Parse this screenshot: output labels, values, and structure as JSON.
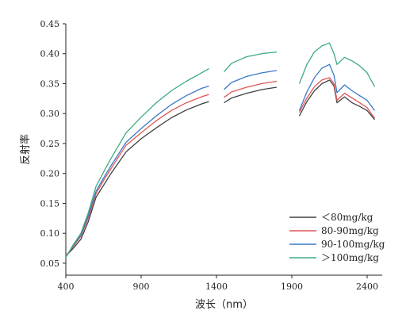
{
  "chart_data": {
    "type": "line",
    "title": "",
    "xlabel": "波长（nm）",
    "ylabel": "反射率",
    "xlim": [
      400,
      2500
    ],
    "ylim": [
      0.03,
      0.45
    ],
    "x_ticks": [
      400,
      900,
      1400,
      1900,
      2400
    ],
    "x_tick_labels": [
      "400",
      "900",
      "1400",
      "1900",
      "2400"
    ],
    "y_ticks": [
      0.05,
      0.1,
      0.15,
      0.2,
      0.25,
      0.3,
      0.35,
      0.4,
      0.45
    ],
    "y_tick_labels": [
      "0.05",
      "0.10",
      "0.15",
      "0.20",
      "0.25",
      "0.30",
      "0.35",
      "0.40",
      "0.45"
    ],
    "grid": false,
    "legend_position": "bottom-right",
    "x": [
      400,
      450,
      500,
      550,
      600,
      650,
      700,
      800,
      900,
      1000,
      1100,
      1200,
      1300,
      1350,
      null,
      1450,
      1500,
      1600,
      1700,
      1800,
      null,
      1950,
      2000,
      2050,
      2100,
      2150,
      2180,
      2200,
      2250,
      2300,
      2350,
      2400,
      2450
    ],
    "series": [
      {
        "name": "＜80mg/kg",
        "color": "#404040",
        "values": [
          0.062,
          0.075,
          0.09,
          0.12,
          0.16,
          0.18,
          0.2,
          0.236,
          0.258,
          0.276,
          0.293,
          0.306,
          0.316,
          0.32,
          null,
          0.318,
          0.326,
          0.334,
          0.34,
          0.344,
          null,
          0.296,
          0.32,
          0.338,
          0.35,
          0.356,
          0.346,
          0.318,
          0.328,
          0.318,
          0.312,
          0.305,
          0.29
        ]
      },
      {
        "name": "80-90mg/kg",
        "color": "#e05555",
        "values": [
          0.062,
          0.078,
          0.095,
          0.126,
          0.166,
          0.188,
          0.208,
          0.247,
          0.268,
          0.288,
          0.305,
          0.318,
          0.328,
          0.332,
          null,
          0.327,
          0.336,
          0.344,
          0.35,
          0.354,
          null,
          0.302,
          0.326,
          0.345,
          0.356,
          0.36,
          0.35,
          0.322,
          0.334,
          0.326,
          0.318,
          0.31,
          0.292
        ]
      },
      {
        "name": "90-100mg/kg",
        "color": "#3a78c8",
        "values": [
          0.06,
          0.08,
          0.097,
          0.13,
          0.17,
          0.192,
          0.213,
          0.252,
          0.275,
          0.296,
          0.315,
          0.33,
          0.342,
          0.346,
          null,
          0.34,
          0.352,
          0.362,
          0.368,
          0.372,
          null,
          0.305,
          0.336,
          0.36,
          0.376,
          0.382,
          0.364,
          0.335,
          0.348,
          0.338,
          0.33,
          0.322,
          0.305
        ]
      },
      {
        "name": "＞100mg/kg",
        "color": "#3daa80",
        "values": [
          0.06,
          0.081,
          0.1,
          0.135,
          0.178,
          0.202,
          0.225,
          0.268,
          0.294,
          0.318,
          0.338,
          0.354,
          0.368,
          0.375,
          null,
          0.37,
          0.384,
          0.395,
          0.4,
          0.403,
          null,
          0.35,
          0.382,
          0.403,
          0.413,
          0.418,
          0.4,
          0.382,
          0.394,
          0.388,
          0.38,
          0.368,
          0.345
        ]
      }
    ]
  }
}
